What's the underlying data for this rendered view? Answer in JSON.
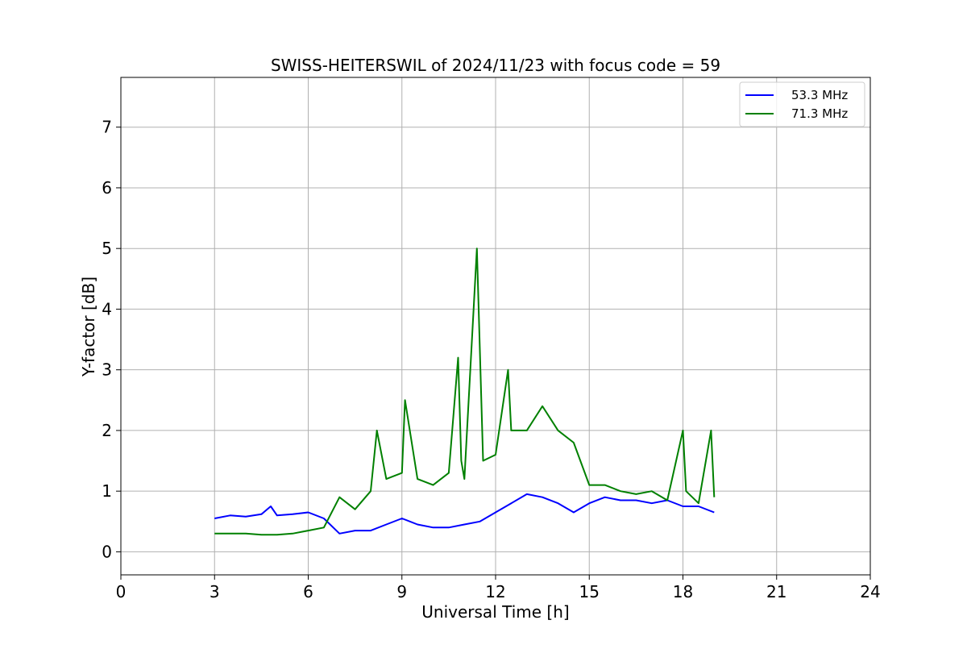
{
  "chart_data": {
    "type": "line",
    "title": "SWISS-HEITERSWIL of 2024/11/23 with focus code = 59",
    "xlabel": "Universal Time [h]",
    "ylabel": "Y-factor [dB]",
    "xlim": [
      0,
      24
    ],
    "ylim": [
      -0.38,
      7.82
    ],
    "xticks": [
      0,
      3,
      6,
      9,
      12,
      15,
      18,
      21,
      24
    ],
    "yticks": [
      0,
      1,
      2,
      3,
      4,
      5,
      6,
      7
    ],
    "xtick_labels": [
      "0",
      "3",
      "6",
      "9",
      "12",
      "15",
      "18",
      "21",
      "24"
    ],
    "ytick_labels": [
      "0",
      "1",
      "2",
      "3",
      "4",
      "5",
      "6",
      "7"
    ],
    "grid": true,
    "legend_position": "top-right",
    "series": [
      {
        "name": "53.3 MHz",
        "color": "#0000ff",
        "x": [
          3.0,
          3.5,
          4.0,
          4.5,
          4.8,
          5.0,
          5.5,
          6.0,
          6.5,
          7.0,
          7.5,
          8.0,
          8.5,
          9.0,
          9.5,
          10.0,
          10.5,
          11.0,
          11.5,
          12.0,
          12.5,
          13.0,
          13.5,
          14.0,
          14.5,
          15.0,
          15.5,
          16.0,
          16.5,
          17.0,
          17.5,
          18.0,
          18.5,
          19.0
        ],
        "values": [
          0.55,
          0.6,
          0.58,
          0.62,
          0.75,
          0.6,
          0.62,
          0.65,
          0.55,
          0.3,
          0.35,
          0.35,
          0.45,
          0.55,
          0.45,
          0.4,
          0.4,
          0.45,
          0.5,
          0.65,
          0.8,
          0.95,
          0.9,
          0.8,
          0.65,
          0.8,
          0.9,
          0.85,
          0.85,
          0.8,
          0.85,
          0.75,
          0.75,
          0.65
        ]
      },
      {
        "name": "71.3 MHz",
        "color": "#008000",
        "x": [
          3.0,
          3.5,
          4.0,
          4.5,
          5.0,
          5.5,
          6.0,
          6.5,
          7.0,
          7.5,
          8.0,
          8.2,
          8.5,
          9.0,
          9.1,
          9.5,
          10.0,
          10.5,
          10.8,
          10.9,
          11.0,
          11.4,
          11.6,
          12.0,
          12.4,
          12.5,
          13.0,
          13.5,
          14.0,
          14.5,
          15.0,
          15.5,
          16.0,
          16.5,
          17.0,
          17.5,
          18.0,
          18.1,
          18.5,
          18.9,
          19.0
        ],
        "values": [
          0.3,
          0.3,
          0.3,
          0.28,
          0.28,
          0.3,
          0.35,
          0.4,
          0.9,
          0.7,
          1.0,
          2.0,
          1.2,
          1.3,
          2.5,
          1.2,
          1.1,
          1.3,
          3.2,
          1.5,
          1.2,
          5.0,
          1.5,
          1.6,
          3.0,
          2.0,
          2.0,
          2.4,
          2.0,
          1.8,
          1.1,
          1.1,
          1.0,
          0.95,
          1.0,
          0.85,
          2.0,
          1.0,
          0.8,
          2.0,
          0.9
        ]
      }
    ]
  }
}
